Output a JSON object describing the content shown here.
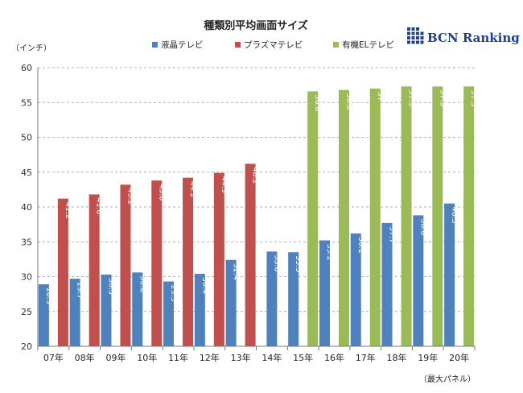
{
  "chart_data": {
    "type": "bar",
    "title": "種類別平均画面サイズ",
    "ylabel": "（インチ）",
    "footnote": "（最大パネル）",
    "ylim": [
      20,
      60
    ],
    "yticks": [
      20,
      25,
      30,
      35,
      40,
      45,
      50,
      55,
      60
    ],
    "grid": true,
    "legend_position": "top",
    "categories": [
      "07年",
      "08年",
      "09年",
      "10年",
      "11年",
      "12年",
      "13年",
      "14年",
      "15年",
      "16年",
      "17年",
      "18年",
      "19年",
      "20年"
    ],
    "series": [
      {
        "name": "液晶テレビ",
        "color": "#4f81bd",
        "values": [
          28.9,
          29.7,
          30.3,
          30.6,
          29.3,
          30.4,
          32.4,
          33.6,
          33.5,
          35.2,
          36.2,
          37.7,
          38.8,
          40.5
        ],
        "labels": [
          "28.9",
          "29.7",
          "30.3",
          "30.6",
          "29.3",
          "30.4",
          "32.4",
          "33.6",
          "33.5",
          "35.2",
          "36.2",
          "37.7",
          "38.8",
          "40.5"
        ]
      },
      {
        "name": "プラズマテレビ",
        "color": "#c0504d",
        "values": [
          41.2,
          41.8,
          43.2,
          43.8,
          44.2,
          44.9,
          46.2,
          null,
          null,
          null,
          null,
          null,
          null,
          null
        ],
        "labels": [
          "41.2",
          "41.8",
          "43.2",
          "43.8",
          "44.2",
          "44.9",
          "46.2"
        ]
      },
      {
        "name": "有機ELテレビ",
        "color": "#9bbb59",
        "values": [
          null,
          null,
          null,
          null,
          null,
          null,
          null,
          null,
          56.6,
          56.8,
          57,
          57.3,
          57.3,
          57.3
        ],
        "labels": [
          "56.6",
          "56.8",
          "57",
          "57.3",
          "57.3",
          "57.3"
        ]
      }
    ]
  },
  "brand": {
    "text": "BCN Ranking",
    "color": "#1f3f8f"
  }
}
